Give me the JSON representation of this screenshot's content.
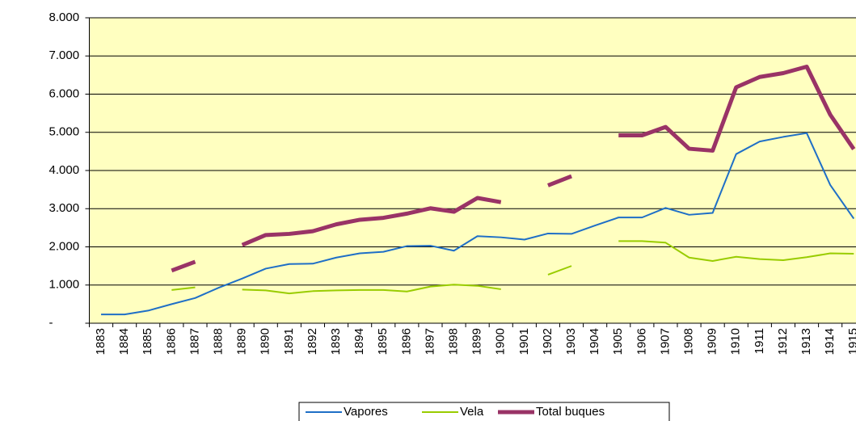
{
  "chart_data": {
    "type": "line",
    "categories": [
      "1883",
      "1884",
      "1885",
      "1886",
      "1887",
      "1888",
      "1889",
      "1890",
      "1891",
      "1892",
      "1893",
      "1894",
      "1895",
      "1896",
      "1897",
      "1898",
      "1899",
      "1900",
      "1901",
      "1902",
      "1903",
      "1904",
      "1905",
      "1906",
      "1907",
      "1908",
      "1909",
      "1910",
      "1911",
      "1912",
      "1913",
      "1914",
      "1915"
    ],
    "series": [
      {
        "name": "Vapores",
        "color": "#1f6fc6",
        "width": 2,
        "values": [
          230,
          230,
          330,
          500,
          660,
          930,
          1170,
          1430,
          1550,
          1560,
          1720,
          1830,
          1870,
          2020,
          2030,
          1900,
          2280,
          2250,
          2190,
          2350,
          2340,
          2560,
          2770,
          2770,
          3020,
          2840,
          2890,
          4430,
          4760,
          4880,
          4980,
          3620,
          2740
        ]
      },
      {
        "name": "Vela",
        "color": "#99cc00",
        "width": 2,
        "values": [
          null,
          null,
          null,
          870,
          940,
          null,
          880,
          860,
          780,
          840,
          860,
          870,
          870,
          830,
          960,
          1010,
          980,
          890,
          null,
          1270,
          1500,
          null,
          2150,
          2150,
          2110,
          1720,
          1630,
          1740,
          1680,
          1650,
          1730,
          1830,
          1820
        ]
      },
      {
        "name": "Total buques",
        "color": "#993366",
        "width": 5,
        "values": [
          null,
          null,
          null,
          1380,
          1610,
          null,
          2050,
          2310,
          2340,
          2410,
          2590,
          2710,
          2760,
          2870,
          3010,
          2920,
          3280,
          3170,
          null,
          3610,
          3850,
          null,
          4920,
          4920,
          5140,
          4570,
          4520,
          6180,
          6450,
          6550,
          6720,
          5460,
          4560
        ]
      }
    ],
    "ylim": [
      0,
      8000
    ],
    "yticks": [
      {
        "value": 0,
        "label": "-"
      },
      {
        "value": 1000,
        "label": "1.000"
      },
      {
        "value": 2000,
        "label": "2.000"
      },
      {
        "value": 3000,
        "label": "3.000"
      },
      {
        "value": 4000,
        "label": "4.000"
      },
      {
        "value": 5000,
        "label": "5.000"
      },
      {
        "value": 6000,
        "label": "6.000"
      },
      {
        "value": 7000,
        "label": "7.000"
      },
      {
        "value": 8000,
        "label": "8.000"
      }
    ],
    "grid": true,
    "plot_background": "#ffffc0",
    "legend": "bottom"
  }
}
